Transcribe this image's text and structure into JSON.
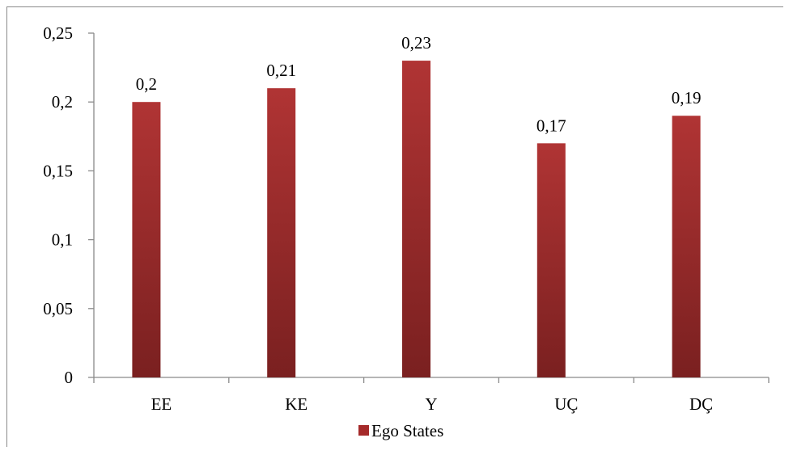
{
  "chart_data": {
    "type": "bar",
    "categories": [
      "EE",
      "KE",
      "Y",
      "UÇ",
      "DÇ"
    ],
    "series": [
      {
        "name": "Ego States",
        "values": [
          0.2,
          0.21,
          0.23,
          0.17,
          0.19
        ],
        "labels": [
          "0,2",
          "0,21",
          "0,23",
          "0,17",
          "0,19"
        ]
      }
    ],
    "ylim": [
      0,
      0.25
    ],
    "yticks": [
      0,
      0.05,
      0.1,
      0.15,
      0.2,
      0.25
    ],
    "ytick_labels": [
      "0",
      "0,05",
      "0,1",
      "0,15",
      "0,2",
      "0,25"
    ],
    "grid": false,
    "legend": "bottom",
    "colors": {
      "bar_top": "#b03434",
      "bar_bottom": "#7a2020",
      "legend_swatch": "#a52a2a",
      "axis": "#8a8a8a"
    }
  }
}
